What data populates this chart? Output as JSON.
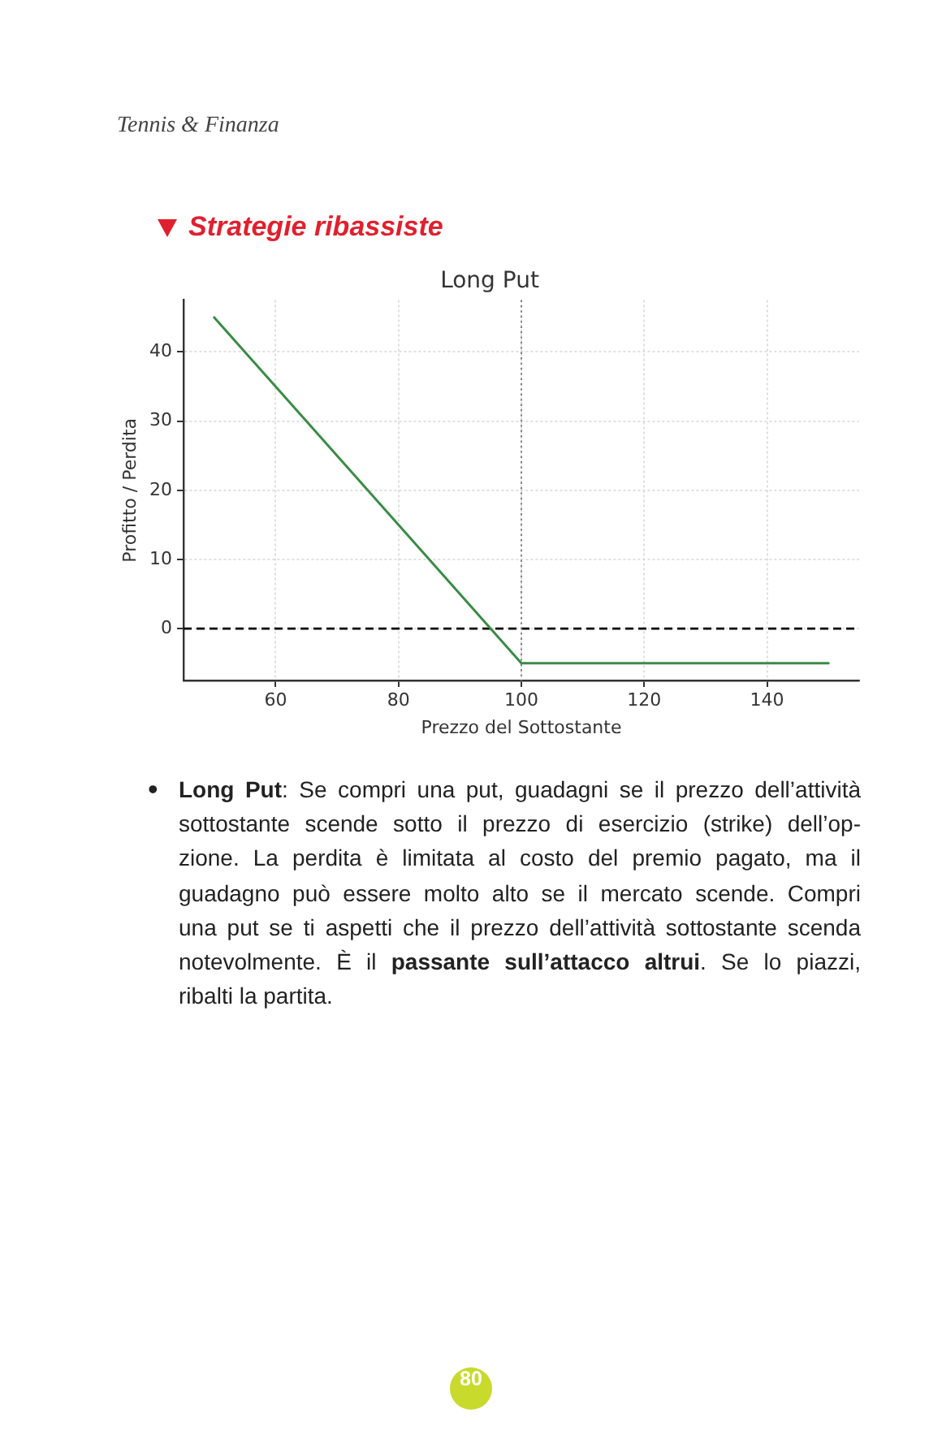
{
  "chart_data": {
    "type": "line",
    "title": "Long Put",
    "xlabel": "Prezzo del Sottostante",
    "ylabel": "Profitto / Perdita",
    "x": [
      50,
      100,
      150
    ],
    "series": [
      {
        "color": "#3a8b45",
        "values": [
          45,
          -5,
          -5
        ]
      }
    ],
    "xlim": [
      45,
      155
    ],
    "ylim": [
      -7.5,
      47.5
    ],
    "xticks": [
      60,
      80,
      100,
      120,
      140
    ],
    "yticks": [
      0,
      10,
      20,
      30,
      40
    ],
    "grid": true,
    "ref_lines": [
      {
        "axis": "y",
        "value": 0,
        "color": "#000000",
        "line_style": "dashed"
      },
      {
        "axis": "x",
        "value": 100,
        "color": "#808080",
        "line_style": "dotted"
      }
    ],
    "annotations": [
      "Tennis & Finanza",
      "Strategie ribassiste",
      "•",
      "Long Put",
      ": Se compri una put, guadagni se il prezzo dell’attività",
      "sottostante scende sotto il prezzo di esercizio (strike) dell’op-",
      "zione. La perdita è limitata al costo del premio pagato, ma il",
      "guadagno può essere molto alto se il mercato scende. Compri",
      "una put se ti aspetti che il prezzo dell’attività sottostante scenda",
      "notevolmente. È il ",
      "passante sull’attacco altrui",
      ". Se lo piazzi,",
      "ribalti la partita.",
      "80"
    ]
  }
}
